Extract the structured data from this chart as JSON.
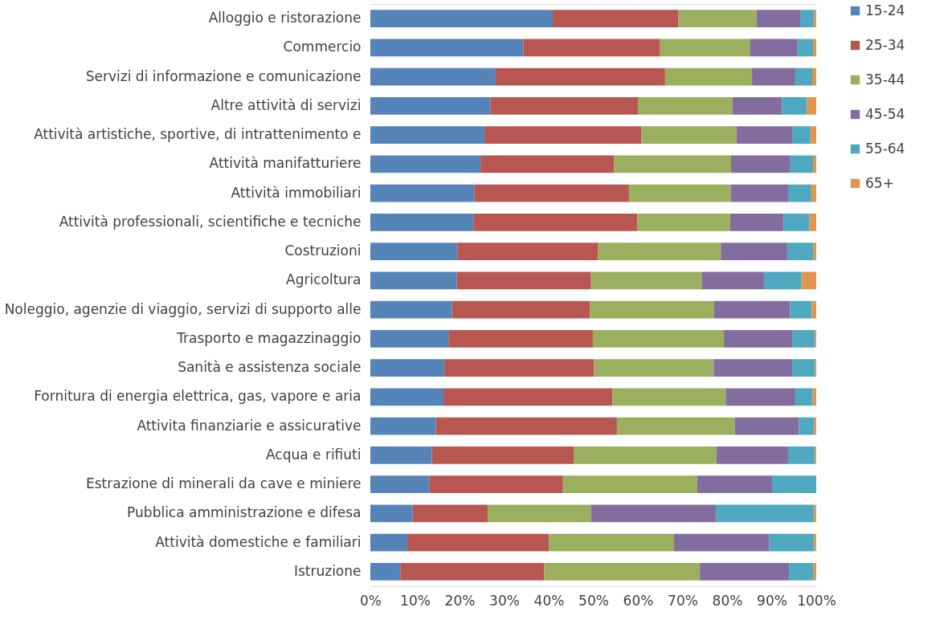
{
  "chart_data": {
    "type": "bar",
    "orientation": "horizontal",
    "stacked": true,
    "categories": [
      "Alloggio e ristorazione",
      "Commercio",
      "Servizi di informazione e comunicazione",
      "Altre attività di servizi",
      "Attività artistiche, sportive, di intrattenimento e",
      "Attività manifatturiere",
      "Attività immobiliari",
      "Attività professionali, scientifiche e tecniche",
      "Costruzioni",
      "Agricoltura",
      "Noleggio, agenzie di viaggio, servizi di supporto alle",
      "Trasporto e magazzinaggio",
      "Sanità e assistenza sociale",
      "Fornitura di energia elettrica, gas, vapore e aria",
      "Attivita finanziarie e assicurative",
      "Acqua e rifiuti",
      "Estrazione di minerali da cave e miniere",
      "Pubblica amministrazione e difesa",
      "Attività domestiche e familiari",
      "Istruzione"
    ],
    "series": [
      {
        "name": "15-24",
        "color": "#5585b8",
        "values": [
          40.9,
          34.3,
          28.1,
          26.9,
          25.6,
          24.7,
          23.3,
          23.1,
          19.5,
          19.4,
          18.3,
          17.5,
          16.6,
          16.4,
          14.7,
          13.8,
          13.3,
          9.5,
          8.3,
          6.7
        ]
      },
      {
        "name": "25-34",
        "color": "#b85752",
        "values": [
          28.2,
          30.7,
          38.0,
          33.1,
          35.2,
          30.0,
          34.7,
          36.8,
          31.6,
          30.1,
          31.0,
          32.4,
          33.6,
          37.9,
          40.6,
          31.9,
          29.9,
          16.8,
          31.8,
          32.3
        ]
      },
      {
        "name": "35-44",
        "color": "#9bb05e",
        "values": [
          17.5,
          20.1,
          19.5,
          21.2,
          21.3,
          26.2,
          22.8,
          20.8,
          27.5,
          24.8,
          27.8,
          29.4,
          26.8,
          25.4,
          26.4,
          31.9,
          30.1,
          23.2,
          28.0,
          34.9
        ]
      },
      {
        "name": "45-54",
        "color": "#836d9e",
        "values": [
          9.8,
          10.7,
          9.7,
          11.1,
          12.5,
          13.3,
          12.9,
          12.0,
          14.9,
          14.0,
          17.0,
          15.3,
          17.6,
          15.6,
          14.4,
          16.1,
          16.8,
          28.0,
          21.4,
          20.0
        ]
      },
      {
        "name": "55-64",
        "color": "#4ea9c0",
        "values": [
          3.1,
          3.5,
          3.8,
          5.6,
          4.1,
          5.1,
          5.2,
          5.8,
          5.9,
          8.4,
          4.9,
          5.1,
          5.1,
          3.9,
          3.4,
          6.0,
          9.9,
          22.0,
          10.0,
          5.5
        ]
      },
      {
        "name": "65+",
        "color": "#e2954d",
        "values": [
          0.5,
          0.7,
          0.9,
          2.1,
          1.3,
          0.7,
          1.1,
          1.5,
          0.6,
          3.3,
          1.0,
          0.3,
          0.3,
          0.8,
          0.5,
          0.3,
          0.0,
          0.5,
          0.5,
          0.6
        ]
      }
    ],
    "xlim": [
      0,
      100
    ],
    "xticks": [
      {
        "value": 0,
        "label": "0%"
      },
      {
        "value": 10,
        "label": "10%"
      },
      {
        "value": 20,
        "label": "20%"
      },
      {
        "value": 30,
        "label": "30%"
      },
      {
        "value": 40,
        "label": "40%"
      },
      {
        "value": 50,
        "label": "50%"
      },
      {
        "value": 60,
        "label": "60%"
      },
      {
        "value": 70,
        "label": "70%"
      },
      {
        "value": 80,
        "label": "80%"
      },
      {
        "value": 90,
        "label": "90%"
      },
      {
        "value": 100,
        "label": "100%"
      }
    ],
    "grid": "x",
    "legend": "right"
  }
}
